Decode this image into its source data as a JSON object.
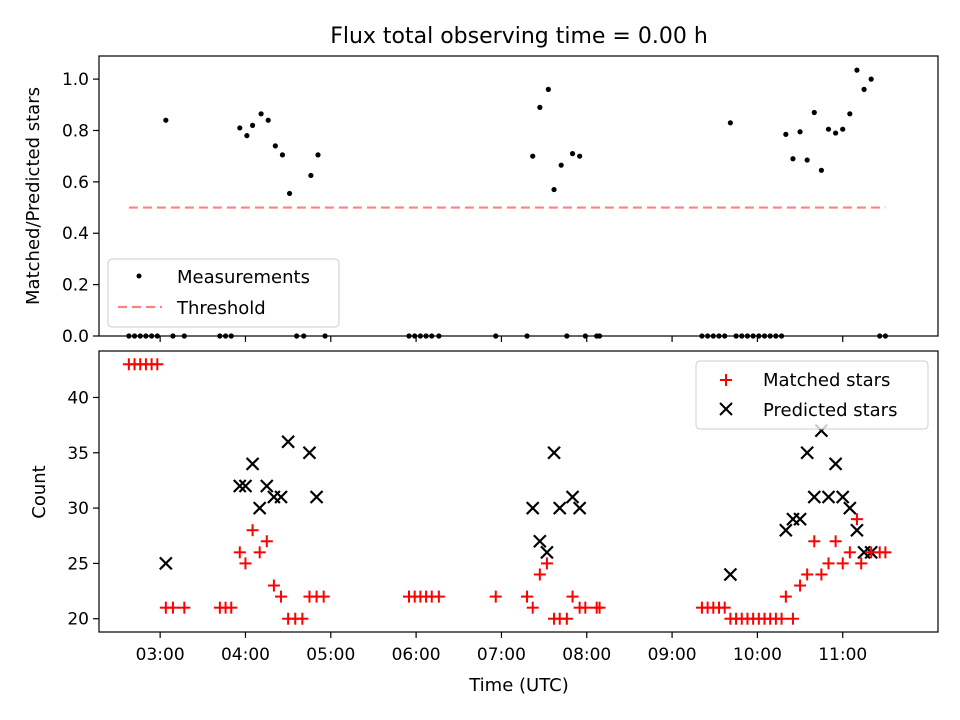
{
  "figure": {
    "title": "Flux total observing time = 0.00 h",
    "xlabel": "Time (UTC)"
  },
  "chart_data": [
    {
      "type": "scatter",
      "ylabel": "Matched/Predicted stars",
      "ylim": [
        0,
        1.09
      ],
      "yticks": [
        0.0,
        0.2,
        0.4,
        0.6,
        0.8,
        1.0
      ],
      "ytick_labels": [
        "0.0",
        "0.2",
        "0.4",
        "0.6",
        "0.8",
        "1.0"
      ],
      "legend_position": "lower-left",
      "series": [
        {
          "name": "Measurements",
          "marker": "dot",
          "color": "#000000",
          "points": [
            [
              "02:38",
              0
            ],
            [
              "02:42",
              0
            ],
            [
              "02:46",
              0
            ],
            [
              "02:50",
              0
            ],
            [
              "02:54",
              0
            ],
            [
              "02:58",
              0
            ],
            [
              "03:04",
              0.84
            ],
            [
              "03:09",
              0
            ],
            [
              "03:17",
              0
            ],
            [
              "03:42",
              0
            ],
            [
              "03:46",
              0
            ],
            [
              "03:50",
              0
            ],
            [
              "03:56",
              0.81
            ],
            [
              "04:01",
              0.78
            ],
            [
              "04:05",
              0.82
            ],
            [
              "04:11",
              0.865
            ],
            [
              "04:16",
              0.84
            ],
            [
              "04:21",
              0.74
            ],
            [
              "04:26",
              0.705
            ],
            [
              "04:31",
              0.555
            ],
            [
              "04:36",
              0
            ],
            [
              "04:41",
              0
            ],
            [
              "04:46",
              0.625
            ],
            [
              "04:51",
              0.705
            ],
            [
              "04:56",
              0
            ],
            [
              "05:55",
              0
            ],
            [
              "05:59",
              0
            ],
            [
              "06:03",
              0
            ],
            [
              "06:07",
              0
            ],
            [
              "06:11",
              0
            ],
            [
              "06:16",
              0
            ],
            [
              "06:56",
              0
            ],
            [
              "07:18",
              0
            ],
            [
              "07:22",
              0.7
            ],
            [
              "07:27",
              0.89
            ],
            [
              "07:33",
              0.96
            ],
            [
              "07:37",
              0.57
            ],
            [
              "07:42",
              0.665
            ],
            [
              "07:46",
              0
            ],
            [
              "07:50",
              0.71
            ],
            [
              "07:55",
              0.7
            ],
            [
              "07:59",
              0
            ],
            [
              "08:07",
              0
            ],
            [
              "08:09",
              0
            ],
            [
              "09:21",
              0
            ],
            [
              "09:25",
              0
            ],
            [
              "09:29",
              0
            ],
            [
              "09:33",
              0
            ],
            [
              "09:37",
              0
            ],
            [
              "09:41",
              0.83
            ],
            [
              "09:45",
              0
            ],
            [
              "09:49",
              0
            ],
            [
              "09:53",
              0
            ],
            [
              "09:57",
              0
            ],
            [
              "10:01",
              0
            ],
            [
              "10:05",
              0
            ],
            [
              "10:09",
              0
            ],
            [
              "10:13",
              0
            ],
            [
              "10:17",
              0
            ],
            [
              "10:20",
              0.785
            ],
            [
              "10:25",
              0.69
            ],
            [
              "10:30",
              0.795
            ],
            [
              "10:35",
              0.685
            ],
            [
              "10:40",
              0.87
            ],
            [
              "10:45",
              0.645
            ],
            [
              "10:50",
              0.805
            ],
            [
              "10:55",
              0.79
            ],
            [
              "11:00",
              0.805
            ],
            [
              "11:05",
              0.865
            ],
            [
              "11:10",
              1.035
            ],
            [
              "11:15",
              0.96
            ],
            [
              "11:20",
              1.0
            ],
            [
              "11:26",
              0
            ],
            [
              "11:30",
              0
            ]
          ]
        },
        {
          "name": "Threshold",
          "type": "line",
          "style": "dashed",
          "color": "#ff8080",
          "x": [
            "02:38",
            "11:30"
          ],
          "y": [
            0.5,
            0.5
          ]
        }
      ]
    },
    {
      "type": "scatter",
      "ylabel": "Count",
      "ylim": [
        18.8,
        44.2
      ],
      "yticks": [
        20,
        25,
        30,
        35,
        40
      ],
      "ytick_labels": [
        "20",
        "25",
        "30",
        "35",
        "40"
      ],
      "xlim": [
        "02:17",
        "12:07"
      ],
      "xticks": [
        "03:00",
        "04:00",
        "05:00",
        "06:00",
        "07:00",
        "08:00",
        "09:00",
        "10:00",
        "11:00"
      ],
      "legend_position": "upper-right",
      "series": [
        {
          "name": "Matched stars",
          "marker": "plus",
          "color": "#ff0000",
          "points": [
            [
              "02:38",
              43
            ],
            [
              "02:42",
              43
            ],
            [
              "02:46",
              43
            ],
            [
              "02:50",
              43
            ],
            [
              "02:54",
              43
            ],
            [
              "02:58",
              43
            ],
            [
              "03:04",
              21
            ],
            [
              "03:09",
              21
            ],
            [
              "03:17",
              21
            ],
            [
              "03:42",
              21
            ],
            [
              "03:46",
              21
            ],
            [
              "03:50",
              21
            ],
            [
              "03:56",
              26
            ],
            [
              "04:00",
              25
            ],
            [
              "04:05",
              28
            ],
            [
              "04:10",
              26
            ],
            [
              "04:15",
              27
            ],
            [
              "04:20",
              23
            ],
            [
              "04:25",
              22
            ],
            [
              "04:30",
              20
            ],
            [
              "04:35",
              20
            ],
            [
              "04:40",
              20
            ],
            [
              "04:45",
              22
            ],
            [
              "04:50",
              22
            ],
            [
              "04:55",
              22
            ],
            [
              "05:55",
              22
            ],
            [
              "05:59",
              22
            ],
            [
              "06:03",
              22
            ],
            [
              "06:07",
              22
            ],
            [
              "06:11",
              22
            ],
            [
              "06:16",
              22
            ],
            [
              "06:56",
              22
            ],
            [
              "07:18",
              22
            ],
            [
              "07:22",
              21
            ],
            [
              "07:27",
              24
            ],
            [
              "07:32",
              25
            ],
            [
              "07:37",
              20
            ],
            [
              "07:41",
              20
            ],
            [
              "07:46",
              20
            ],
            [
              "07:50",
              22
            ],
            [
              "07:55",
              21
            ],
            [
              "07:59",
              21
            ],
            [
              "08:07",
              21
            ],
            [
              "08:09",
              21
            ],
            [
              "09:21",
              21
            ],
            [
              "09:25",
              21
            ],
            [
              "09:29",
              21
            ],
            [
              "09:33",
              21
            ],
            [
              "09:37",
              21
            ],
            [
              "09:41",
              20
            ],
            [
              "09:45",
              20
            ],
            [
              "09:49",
              20
            ],
            [
              "09:53",
              20
            ],
            [
              "09:57",
              20
            ],
            [
              "10:01",
              20
            ],
            [
              "10:05",
              20
            ],
            [
              "10:09",
              20
            ],
            [
              "10:13",
              20
            ],
            [
              "10:17",
              20
            ],
            [
              "10:20",
              22
            ],
            [
              "10:25",
              20
            ],
            [
              "10:30",
              23
            ],
            [
              "10:35",
              24
            ],
            [
              "10:40",
              27
            ],
            [
              "10:45",
              24
            ],
            [
              "10:50",
              25
            ],
            [
              "10:55",
              27
            ],
            [
              "11:00",
              25
            ],
            [
              "11:05",
              26
            ],
            [
              "11:10",
              29
            ],
            [
              "11:13",
              25
            ],
            [
              "11:20",
              26
            ],
            [
              "11:26",
              26
            ],
            [
              "11:30",
              26
            ]
          ]
        },
        {
          "name": "Predicted stars",
          "marker": "x",
          "color": "#000000",
          "points": [
            [
              "03:04",
              25
            ],
            [
              "03:56",
              32
            ],
            [
              "04:00",
              32
            ],
            [
              "04:05",
              34
            ],
            [
              "04:10",
              30
            ],
            [
              "04:15",
              32
            ],
            [
              "04:20",
              31
            ],
            [
              "04:25",
              31
            ],
            [
              "04:30",
              36
            ],
            [
              "04:45",
              35
            ],
            [
              "04:50",
              31
            ],
            [
              "07:22",
              30
            ],
            [
              "07:27",
              27
            ],
            [
              "07:32",
              26
            ],
            [
              "07:37",
              35
            ],
            [
              "07:41",
              30
            ],
            [
              "07:50",
              31
            ],
            [
              "07:55",
              30
            ],
            [
              "09:41",
              24
            ],
            [
              "10:20",
              28
            ],
            [
              "10:25",
              29
            ],
            [
              "10:30",
              29
            ],
            [
              "10:35",
              35
            ],
            [
              "10:40",
              31
            ],
            [
              "10:45",
              37
            ],
            [
              "10:50",
              31
            ],
            [
              "10:55",
              34
            ],
            [
              "11:00",
              31
            ],
            [
              "11:05",
              30
            ],
            [
              "11:10",
              28
            ],
            [
              "11:15",
              26
            ],
            [
              "11:20",
              26
            ]
          ]
        }
      ]
    }
  ]
}
